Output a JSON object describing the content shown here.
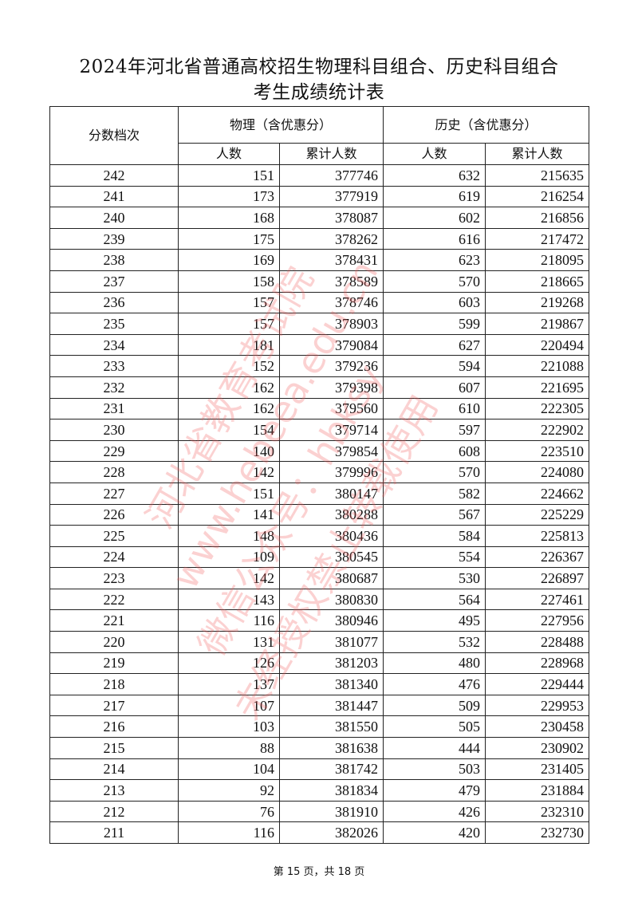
{
  "title_line1": "2024年河北省普通高校招生物理科目组合、历史科目组合",
  "title_line2": "考生成绩统计表",
  "headers": {
    "score": "分数档次",
    "physics": "物理（含优惠分）",
    "history": "历史（含优惠分）",
    "count": "人数",
    "cumulative": "累计人数"
  },
  "rows": [
    [
      242,
      151,
      377746,
      632,
      215635
    ],
    [
      241,
      173,
      377919,
      619,
      216254
    ],
    [
      240,
      168,
      378087,
      602,
      216856
    ],
    [
      239,
      175,
      378262,
      616,
      217472
    ],
    [
      238,
      169,
      378431,
      623,
      218095
    ],
    [
      237,
      158,
      378589,
      570,
      218665
    ],
    [
      236,
      157,
      378746,
      603,
      219268
    ],
    [
      235,
      157,
      378903,
      599,
      219867
    ],
    [
      234,
      181,
      379084,
      627,
      220494
    ],
    [
      233,
      152,
      379236,
      594,
      221088
    ],
    [
      232,
      162,
      379398,
      607,
      221695
    ],
    [
      231,
      162,
      379560,
      610,
      222305
    ],
    [
      230,
      154,
      379714,
      597,
      222902
    ],
    [
      229,
      140,
      379854,
      608,
      223510
    ],
    [
      228,
      142,
      379996,
      570,
      224080
    ],
    [
      227,
      151,
      380147,
      582,
      224662
    ],
    [
      226,
      141,
      380288,
      567,
      225229
    ],
    [
      225,
      148,
      380436,
      584,
      225813
    ],
    [
      224,
      109,
      380545,
      554,
      226367
    ],
    [
      223,
      142,
      380687,
      530,
      226897
    ],
    [
      222,
      143,
      380830,
      564,
      227461
    ],
    [
      221,
      116,
      380946,
      495,
      227956
    ],
    [
      220,
      131,
      381077,
      532,
      228488
    ],
    [
      219,
      126,
      381203,
      480,
      228968
    ],
    [
      218,
      137,
      381340,
      476,
      229444
    ],
    [
      217,
      107,
      381447,
      509,
      229953
    ],
    [
      216,
      103,
      381550,
      505,
      230458
    ],
    [
      215,
      88,
      381638,
      444,
      230902
    ],
    [
      214,
      104,
      381742,
      503,
      231405
    ],
    [
      213,
      92,
      381834,
      479,
      231884
    ],
    [
      212,
      76,
      381910,
      426,
      232310
    ],
    [
      211,
      116,
      382026,
      420,
      232730
    ]
  ],
  "footer": "第 15 页，共 18 页",
  "watermark": [
    "河北省教育考试院",
    "www.hebeea.edu.cn",
    "微信公众号：hbksy",
    "未经授权禁止转载使用"
  ],
  "watermark_color": "#f05a5a"
}
